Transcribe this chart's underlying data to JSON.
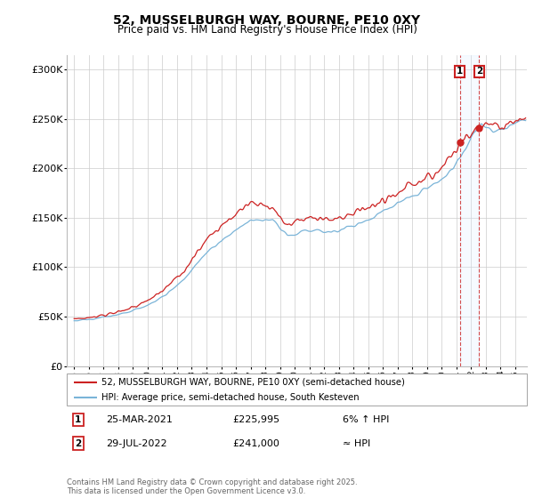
{
  "title": "52, MUSSELBURGH WAY, BOURNE, PE10 0XY",
  "subtitle": "Price paid vs. HM Land Registry's House Price Index (HPI)",
  "ylabel_ticks": [
    "£0",
    "£50K",
    "£100K",
    "£150K",
    "£200K",
    "£250K",
    "£300K"
  ],
  "ytick_values": [
    0,
    50000,
    100000,
    150000,
    200000,
    250000,
    300000
  ],
  "ylim": [
    0,
    315000
  ],
  "xlim_start": 1994.5,
  "xlim_end": 2025.8,
  "legend_line1": "52, MUSSELBURGH WAY, BOURNE, PE10 0XY (semi-detached house)",
  "legend_line2": "HPI: Average price, semi-detached house, South Kesteven",
  "annotation1_date": "25-MAR-2021",
  "annotation1_price": "£225,995",
  "annotation1_note": "6% ↑ HPI",
  "annotation2_date": "29-JUL-2022",
  "annotation2_price": "£241,000",
  "annotation2_note": "≈ HPI",
  "footer": "Contains HM Land Registry data © Crown copyright and database right 2025.\nThis data is licensed under the Open Government Licence v3.0.",
  "hpi_color": "#7ab4d8",
  "price_color": "#cc2222",
  "shade_color": "#ddeeff",
  "annotation_color": "#cc2222",
  "background_color": "#ffffff",
  "grid_color": "#cccccc",
  "sale1_x": 2021.22,
  "sale1_y": 225995,
  "sale2_x": 2022.55,
  "sale2_y": 241000
}
